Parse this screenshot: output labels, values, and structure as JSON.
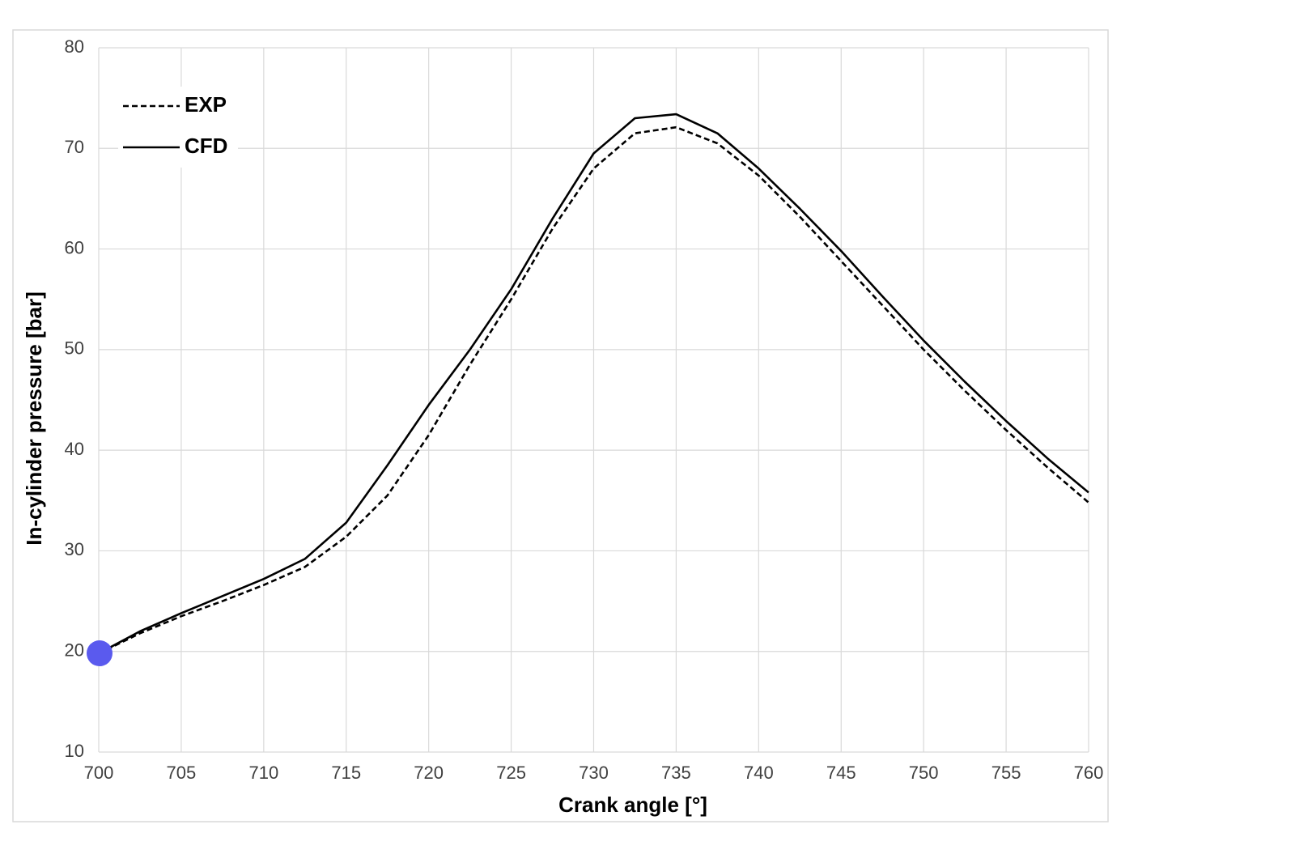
{
  "chart_data": {
    "type": "line",
    "x_label": "Crank angle [°]",
    "y_label": "In-cylinder pressure [bar]",
    "x": [
      700,
      702.5,
      705,
      707.5,
      710,
      712.5,
      715,
      717.5,
      720,
      722.5,
      725,
      727.5,
      730,
      732.5,
      735,
      737.5,
      740,
      742.5,
      745,
      747.5,
      750,
      752.5,
      755,
      757.5,
      760
    ],
    "series": [
      {
        "name": "EXP",
        "color": "#000000",
        "dash": true,
        "values": [
          19.8,
          21.8,
          23.5,
          25.0,
          26.6,
          28.4,
          31.4,
          35.5,
          41.5,
          48.5,
          55.0,
          62.0,
          68.0,
          71.5,
          72.1,
          70.5,
          67.3,
          63.2,
          58.8,
          54.4,
          50.0,
          45.9,
          42.0,
          38.3,
          34.8
        ]
      },
      {
        "name": "CFD",
        "color": "#000000",
        "dash": false,
        "values": [
          19.8,
          22.0,
          23.8,
          25.5,
          27.2,
          29.2,
          32.8,
          38.5,
          44.5,
          50.0,
          56.0,
          63.0,
          69.5,
          73.0,
          73.4,
          71.5,
          68.0,
          64.0,
          59.8,
          55.3,
          50.9,
          46.8,
          42.9,
          39.2,
          35.8
        ]
      }
    ],
    "xlim": [
      700,
      760
    ],
    "xticks": [
      700,
      705,
      710,
      715,
      720,
      725,
      730,
      735,
      740,
      745,
      750,
      755,
      760
    ],
    "ylim": [
      10,
      80
    ],
    "yticks": [
      10,
      20,
      30,
      40,
      50,
      60,
      70,
      80
    ],
    "grid": true,
    "legend": "upper-left"
  }
}
